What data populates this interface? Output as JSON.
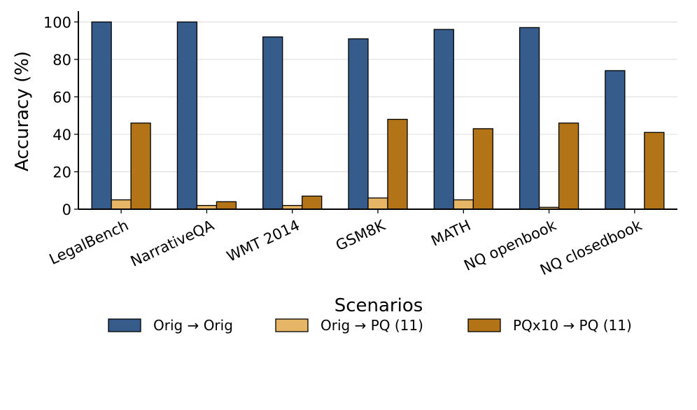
{
  "chart_data": {
    "type": "bar",
    "title": "",
    "xlabel": "Scenarios",
    "ylabel": "Accuracy (%)",
    "ylim": [
      0,
      105
    ],
    "yticks": [
      0,
      20,
      40,
      60,
      80,
      100
    ],
    "grid": "horizontal",
    "categories": [
      "LegalBench",
      "NarrativeQA",
      "WMT 2014",
      "GSM8K",
      "MATH",
      "NQ openbook",
      "NQ closedbook"
    ],
    "series": [
      {
        "name": "Orig → Orig",
        "color": "#365c8c",
        "values": [
          100,
          100,
          92,
          91,
          96,
          97,
          74
        ]
      },
      {
        "name": "Orig → PQ (11)",
        "color": "#e6b666",
        "values": [
          5,
          2,
          2,
          6,
          5,
          1,
          0
        ]
      },
      {
        "name": "PQx10 → PQ (11)",
        "color": "#b37417",
        "values": [
          46,
          4,
          7,
          48,
          43,
          46,
          41
        ]
      }
    ],
    "legend_position": "bottom-center"
  }
}
